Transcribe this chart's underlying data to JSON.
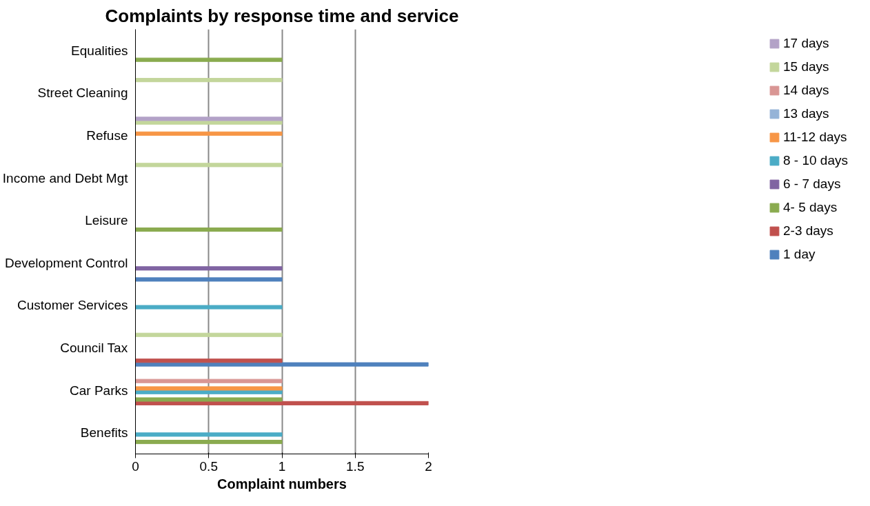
{
  "chart_data": {
    "type": "bar",
    "orientation": "horizontal",
    "title": "Complaints by response time and service",
    "xlabel": "Complaint numbers",
    "categories": [
      "Equalities",
      "Street Cleaning",
      "Refuse",
      "Income and Debt Mgt",
      "Leisure",
      "Development Control",
      "Customer Services",
      "Council Tax",
      "Car Parks",
      "Benefits"
    ],
    "series": [
      {
        "name": "1 day",
        "color": "#4f81bd",
        "values": [
          null,
          null,
          null,
          null,
          null,
          1,
          null,
          2,
          null,
          null
        ]
      },
      {
        "name": "2-3 days",
        "color": "#c0504d",
        "values": [
          null,
          null,
          null,
          null,
          null,
          null,
          0,
          1,
          2,
          null
        ]
      },
      {
        "name": "4- 5 days",
        "color": "#8aab4f",
        "values": [
          1,
          null,
          null,
          null,
          1,
          null,
          null,
          null,
          1,
          1
        ]
      },
      {
        "name": "6 - 7 days",
        "color": "#8064a2",
        "values": [
          null,
          null,
          null,
          null,
          null,
          1,
          null,
          null,
          null,
          null
        ]
      },
      {
        "name": "8 - 10 days",
        "color": "#4bacc6",
        "values": [
          null,
          null,
          null,
          null,
          null,
          null,
          1,
          null,
          1,
          1
        ]
      },
      {
        "name": "11-12 days",
        "color": "#f79646",
        "values": [
          null,
          null,
          1,
          null,
          null,
          null,
          null,
          null,
          1,
          null
        ]
      },
      {
        "name": "13 days",
        "color": "#95b3d7",
        "values": [
          null,
          null,
          null,
          null,
          null,
          null,
          null,
          null,
          null,
          null
        ]
      },
      {
        "name": "14 days",
        "color": "#d99694",
        "values": [
          null,
          null,
          null,
          null,
          null,
          null,
          null,
          null,
          1,
          null
        ]
      },
      {
        "name": "15 days",
        "color": "#c3d69b",
        "values": [
          null,
          1,
          1,
          1,
          null,
          null,
          null,
          1,
          null,
          null
        ]
      },
      {
        "name": "17 days",
        "color": "#b3a2c7",
        "values": [
          null,
          null,
          1,
          null,
          null,
          null,
          null,
          null,
          null,
          null
        ]
      }
    ],
    "xlim": [
      0,
      2
    ],
    "xticks": [
      0,
      0.5,
      1,
      1.5,
      2
    ],
    "grid": "x",
    "legend": "right"
  }
}
